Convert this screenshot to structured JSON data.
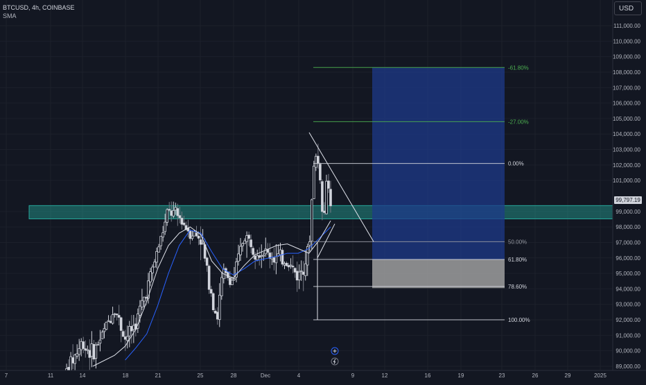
{
  "header": {
    "title": "BTCUSD, 4h, COINBASE",
    "indicator": "SMA"
  },
  "price_scale": {
    "currency": "USD",
    "last_price": "99,797.19",
    "ticks": [
      "111,000.00",
      "110,000.00",
      "109,000.00",
      "108,000.00",
      "107,000.00",
      "106,000.00",
      "105,000.00",
      "104,000.00",
      "103,000.00",
      "102,000.00",
      "101,000.00",
      "99,000.00",
      "98,000.00",
      "97,000.00",
      "96,000.00",
      "95,000.00",
      "94,000.00",
      "93,000.00",
      "92,000.00",
      "91,000.00",
      "90,000.00",
      "89,000.00"
    ]
  },
  "time_scale": {
    "ticks": [
      "7",
      "11",
      "14",
      "18",
      "21",
      "25",
      "28",
      "Dec",
      "4",
      "9",
      "12",
      "16",
      "19",
      "23",
      "26",
      "29",
      "2025"
    ]
  },
  "fib_levels": [
    {
      "label": "-61.80%",
      "price": 108300,
      "color": "#4caf50"
    },
    {
      "label": "-27.00%",
      "price": 104800,
      "color": "#4caf50"
    },
    {
      "label": "0.00%",
      "price": 102100,
      "color": "#d1d4dc"
    },
    {
      "label": "50.00%",
      "price": 97050,
      "color": "#9598a1"
    },
    {
      "label": "61.80%",
      "price": 95900,
      "color": "#d1d4dc"
    },
    {
      "label": "78.60%",
      "price": 94150,
      "color": "#d1d4dc"
    },
    {
      "label": "100.00%",
      "price": 92000,
      "color": "#d1d4dc"
    }
  ],
  "zone": {
    "price_top": 99200,
    "price_bottom": 98700,
    "color": "#26a69a"
  },
  "position_tool": {
    "target_top": 108300,
    "entry": 95900,
    "stop": 94050,
    "profit_color": "#1e3a8a",
    "loss_color": "#9e9e9e"
  },
  "icons": [
    "plus-circle-icon",
    "lightning-icon"
  ],
  "chart_data": {
    "type": "candlestick",
    "title": "BTCUSD, 4h, COINBASE",
    "y_range": [
      88800,
      111600
    ],
    "y_ticks": [
      89000,
      90000,
      91000,
      92000,
      93000,
      94000,
      95000,
      96000,
      97000,
      98000,
      99000,
      101000,
      102000,
      103000,
      104000,
      105000,
      106000,
      107000,
      108000,
      109000,
      110000,
      111000
    ],
    "x_tick_labels": [
      "7",
      "11",
      "14",
      "18",
      "21",
      "25",
      "28",
      "Dec",
      "4",
      "9",
      "12",
      "16",
      "19",
      "23",
      "26",
      "29",
      "2025"
    ],
    "series": [
      {
        "name": "SMA",
        "kind": "line",
        "points": [
          [
            18,
            89400
          ],
          [
            19,
            90200
          ],
          [
            20,
            91100
          ],
          [
            21,
            92900
          ],
          [
            22,
            95000
          ],
          [
            23,
            96800
          ],
          [
            24,
            97800
          ],
          [
            25,
            97600
          ],
          [
            26,
            96400
          ],
          [
            27,
            95300
          ],
          [
            28,
            94900
          ],
          [
            29,
            95300
          ],
          [
            30,
            95800
          ],
          [
            1,
            96100
          ],
          [
            2,
            96300
          ],
          [
            3,
            96300
          ],
          [
            4,
            96600
          ],
          [
            5,
            97300
          ],
          [
            6,
            98000
          ]
        ]
      },
      {
        "name": "SMA",
        "kind": "line",
        "points": [
          [
            15,
            89000
          ],
          [
            17,
            89700
          ],
          [
            18,
            90300
          ],
          [
            19,
            91400
          ],
          [
            20,
            93200
          ],
          [
            21,
            95300
          ],
          [
            22,
            96800
          ],
          [
            23,
            97600
          ],
          [
            24,
            98000
          ],
          [
            25,
            97500
          ],
          [
            26,
            95800
          ],
          [
            27,
            95000
          ],
          [
            28,
            94700
          ],
          [
            29,
            95500
          ],
          [
            30,
            96200
          ],
          [
            1,
            96800
          ],
          [
            2,
            96900
          ],
          [
            3,
            96600
          ],
          [
            4,
            96300
          ],
          [
            5,
            97200
          ],
          [
            6,
            98400
          ]
        ]
      }
    ],
    "price_path": [
      [
        12,
        88000
      ],
      [
        14,
        90500
      ],
      [
        15,
        89800
      ],
      [
        16,
        91200
      ],
      [
        17,
        92800
      ],
      [
        18,
        90800
      ],
      [
        19,
        91800
      ],
      [
        20,
        94000
      ],
      [
        21,
        96500
      ],
      [
        22,
        99000
      ],
      [
        23,
        98600
      ],
      [
        24,
        97700
      ],
      [
        25,
        97300
      ],
      [
        25.5,
        95400
      ],
      [
        26,
        93700
      ],
      [
        26.5,
        92000
      ],
      [
        27,
        95000
      ],
      [
        28,
        94500
      ],
      [
        29,
        97500
      ],
      [
        30,
        96600
      ],
      [
        1,
        96000
      ],
      [
        2,
        95800
      ],
      [
        3,
        94800
      ],
      [
        4,
        96500
      ],
      [
        4.5,
        102800
      ],
      [
        5,
        101700
      ],
      [
        5.3,
        98000
      ],
      [
        5.7,
        101400
      ],
      [
        6,
        99800
      ]
    ],
    "candle_count": 130,
    "last_price": 99797.19
  }
}
